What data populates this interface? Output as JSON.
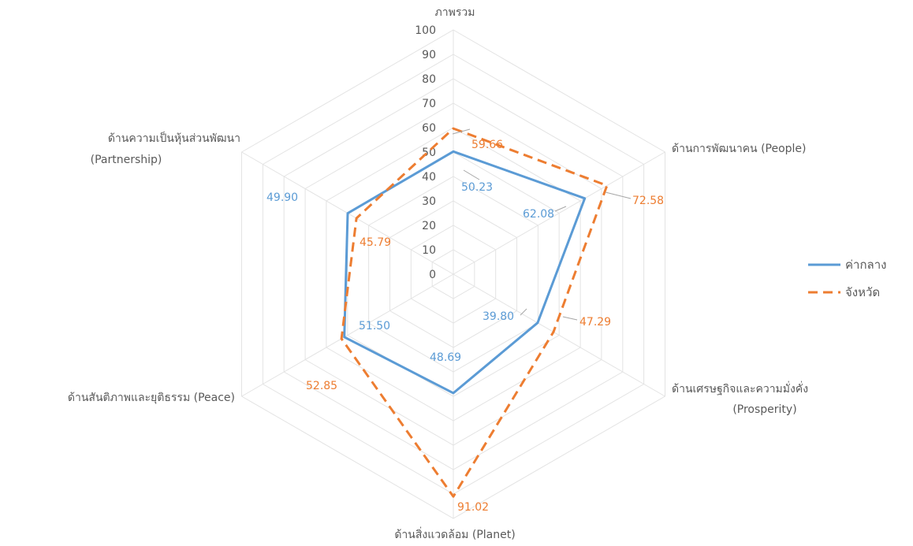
{
  "chart_data": {
    "type": "radar",
    "axes": [
      {
        "label": "ภาพรวม",
        "sublabel": ""
      },
      {
        "label": "ด้านการพัฒนาคน (People)",
        "sublabel": ""
      },
      {
        "label": "ด้านเศรษฐกิจและความมั่งคั่ง",
        "sublabel": "(Prosperity)"
      },
      {
        "label": "ด้านสิ่งแวดล้อม (Planet)",
        "sublabel": ""
      },
      {
        "label": "ด้านสันติภาพและยุติธรรม (Peace)",
        "sublabel": ""
      },
      {
        "label": "ด้านความเป็นหุ้นส่วนพัฒนา",
        "sublabel": "(Partnership)"
      }
    ],
    "ticks": [
      "0",
      "10",
      "20",
      "30",
      "40",
      "50",
      "60",
      "70",
      "80",
      "90",
      "100"
    ],
    "rlim": [
      0,
      100
    ],
    "series": [
      {
        "name": "ค่ากลาง",
        "color": "#5b9bd5",
        "dash": "solid",
        "values": [
          50.23,
          62.08,
          39.8,
          48.69,
          51.5,
          49.9
        ],
        "labels": [
          "50.23",
          "62.08",
          "39.80",
          "48.69",
          "51.50",
          "49.90"
        ]
      },
      {
        "name": "จังหวัด",
        "color": "#ed7d31",
        "dash": "dashed",
        "values": [
          59.66,
          72.58,
          47.29,
          91.02,
          52.85,
          45.79
        ],
        "labels": [
          "59.66",
          "72.58",
          "47.29",
          "91.02",
          "52.85",
          "45.79"
        ]
      }
    ],
    "legend_position": "right",
    "grid": true
  }
}
